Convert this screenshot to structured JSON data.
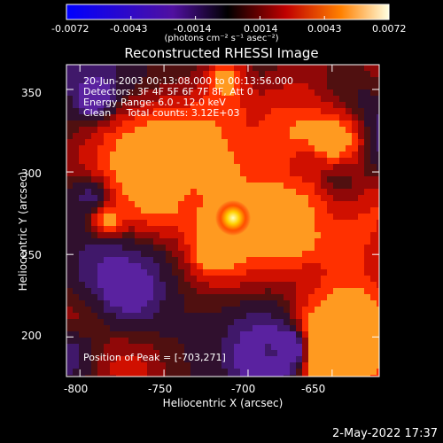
{
  "colorbar": {
    "ticks": [
      "-0.0072",
      "-0.0043",
      "-0.0014",
      "0.0014",
      "0.0043",
      "0.0072"
    ],
    "unit_label": "(photons cm⁻² s⁻¹ asec⁻²)"
  },
  "title": "Reconstructed RHESSI Image",
  "annotations": {
    "line1": "20-Jun-2003 00:13:08.000 to 00:13:56.000",
    "line2": "Detectors: 3F 4F 5F 6F 7F 8F, Att 0",
    "line3": "Energy Range: 6.0 - 12.0 keV",
    "line4": "Clean     Total counts: 3.12E+03",
    "peak": "Position of Peak = [-703,271]"
  },
  "axes": {
    "xlabel": "Heliocentric X (arcsec)",
    "ylabel": "Heliocentric Y (arcsec)",
    "xticks": [
      "-800",
      "-750",
      "-700",
      "-650"
    ],
    "yticks": [
      "350",
      "300",
      "250",
      "200"
    ],
    "xlim": [
      -808,
      -622
    ],
    "ylim": [
      176,
      365
    ]
  },
  "timestamp": "2-May-2022 17:37",
  "colors": {
    "positive": "#ff2000",
    "negative": "#5a1fa0",
    "peak": "#ffffb0"
  }
}
